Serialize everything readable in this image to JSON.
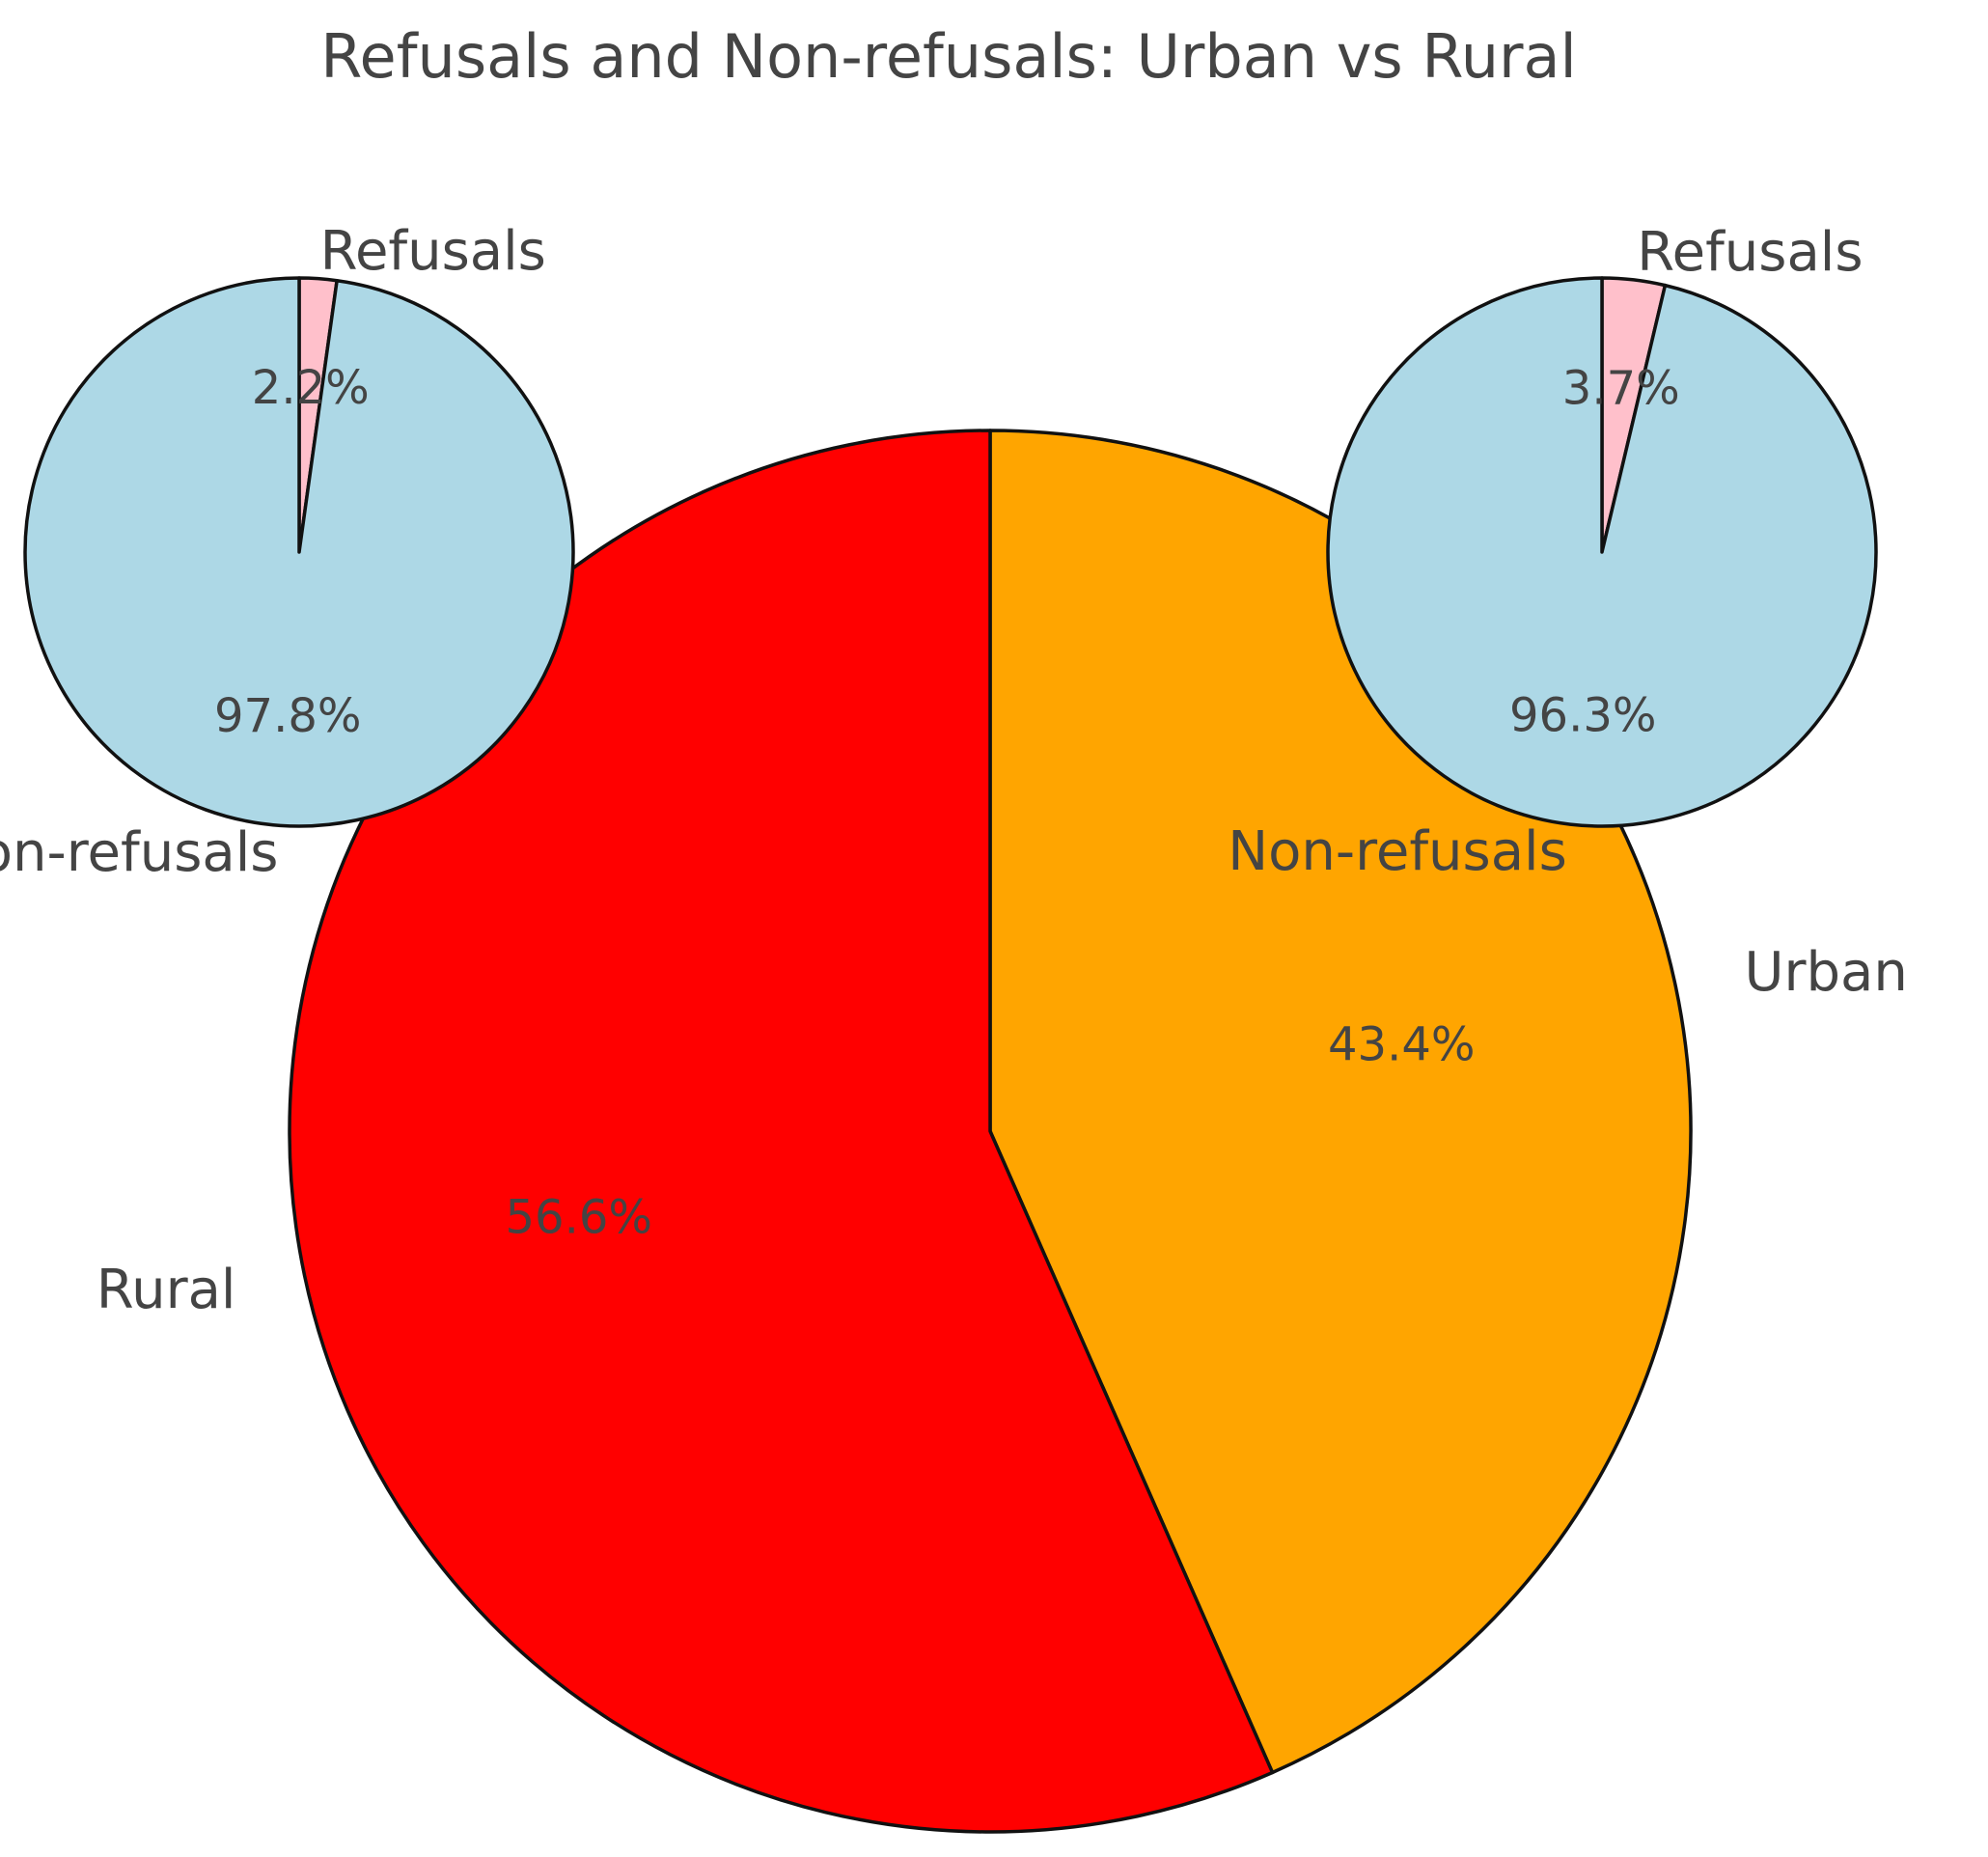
{
  "chart_data": [
    {
      "type": "pie",
      "title": "Refusals and Non-refusals: Urban vs Rural",
      "slices": [
        {
          "label": "Urban",
          "value": 43.4,
          "pct_label": "43.4%",
          "color": "#ffa500"
        },
        {
          "label": "Rural",
          "value": 56.6,
          "pct_label": "56.6%",
          "color": "#ff0000"
        }
      ]
    },
    {
      "type": "pie",
      "slices": [
        {
          "label": "Refusals",
          "value": 2.2,
          "pct_label": "2.2%",
          "color": "#ffc0cb"
        },
        {
          "label": "Non-refusals",
          "value": 97.8,
          "pct_label": "97.8%",
          "color": "#add8e6"
        }
      ]
    },
    {
      "type": "pie",
      "slices": [
        {
          "label": "Refusals",
          "value": 3.7,
          "pct_label": "3.7%",
          "color": "#ffc0cb"
        },
        {
          "label": "Non-refusals",
          "value": 96.3,
          "pct_label": "96.3%",
          "color": "#add8e6"
        }
      ]
    }
  ]
}
